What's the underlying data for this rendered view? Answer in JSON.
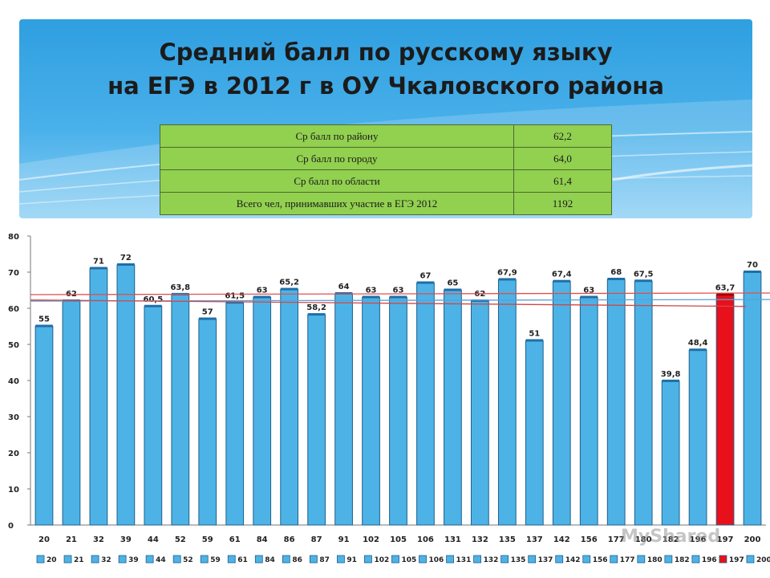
{
  "slide": {
    "title_line1": "Средний балл по русскому языку",
    "title_line2": "на ЕГЭ в 2012 г в ОУ Чкаловского района",
    "watermark": "MyShared"
  },
  "stats_table": [
    {
      "label": "Ср балл по району",
      "value": "62,2"
    },
    {
      "label": "Ср балл по городу",
      "value": "64,0"
    },
    {
      "label": "Ср балл по области",
      "value": "61,4"
    },
    {
      "label": "Всего чел, принимавших участие в ЕГЭ 2012",
      "value": "1192"
    }
  ],
  "colors": {
    "bar": "#4db3e6",
    "bar_edge": "#1f5f8b",
    "highlight_bar": "#e8101a",
    "table_bg": "#92d050",
    "banner": "#3aa7e4"
  },
  "chart_data": {
    "type": "bar",
    "categories": [
      "20",
      "21",
      "32",
      "39",
      "44",
      "52",
      "59",
      "61",
      "84",
      "86",
      "87",
      "91",
      "102",
      "105",
      "106",
      "131",
      "132",
      "135",
      "137",
      "142",
      "156",
      "177",
      "180",
      "182",
      "196",
      "197",
      "200"
    ],
    "values": [
      55,
      62,
      71,
      72,
      60.5,
      63.8,
      57,
      61.5,
      63,
      65.2,
      58.2,
      64,
      63,
      63,
      67,
      65,
      62,
      67.9,
      51,
      67.4,
      63,
      68,
      67.5,
      39.8,
      48.4,
      63.7,
      70
    ],
    "data_labels": [
      "55",
      "62",
      "71",
      "72",
      "60,5",
      "63,8",
      "57",
      "61,5",
      "63",
      "65,2",
      "58,2",
      "64",
      "63",
      "63",
      "67",
      "65",
      "62",
      "67,9",
      "51",
      "67,4",
      "63",
      "68",
      "67,5",
      "39,8",
      "48,4",
      "63,7",
      "70"
    ],
    "highlight_category": "197",
    "ylim": [
      0,
      80
    ],
    "yticks": [
      0,
      10,
      20,
      30,
      40,
      50,
      60,
      70,
      80
    ],
    "reference_lines": [
      {
        "value": 64.0,
        "color": "#e05050"
      },
      {
        "value": 62.2,
        "color": "#5aa0d8"
      },
      {
        "value": 61.4,
        "color": "#d04848"
      }
    ],
    "legend_position": "bottom",
    "title": "",
    "xlabel": "",
    "ylabel": ""
  }
}
